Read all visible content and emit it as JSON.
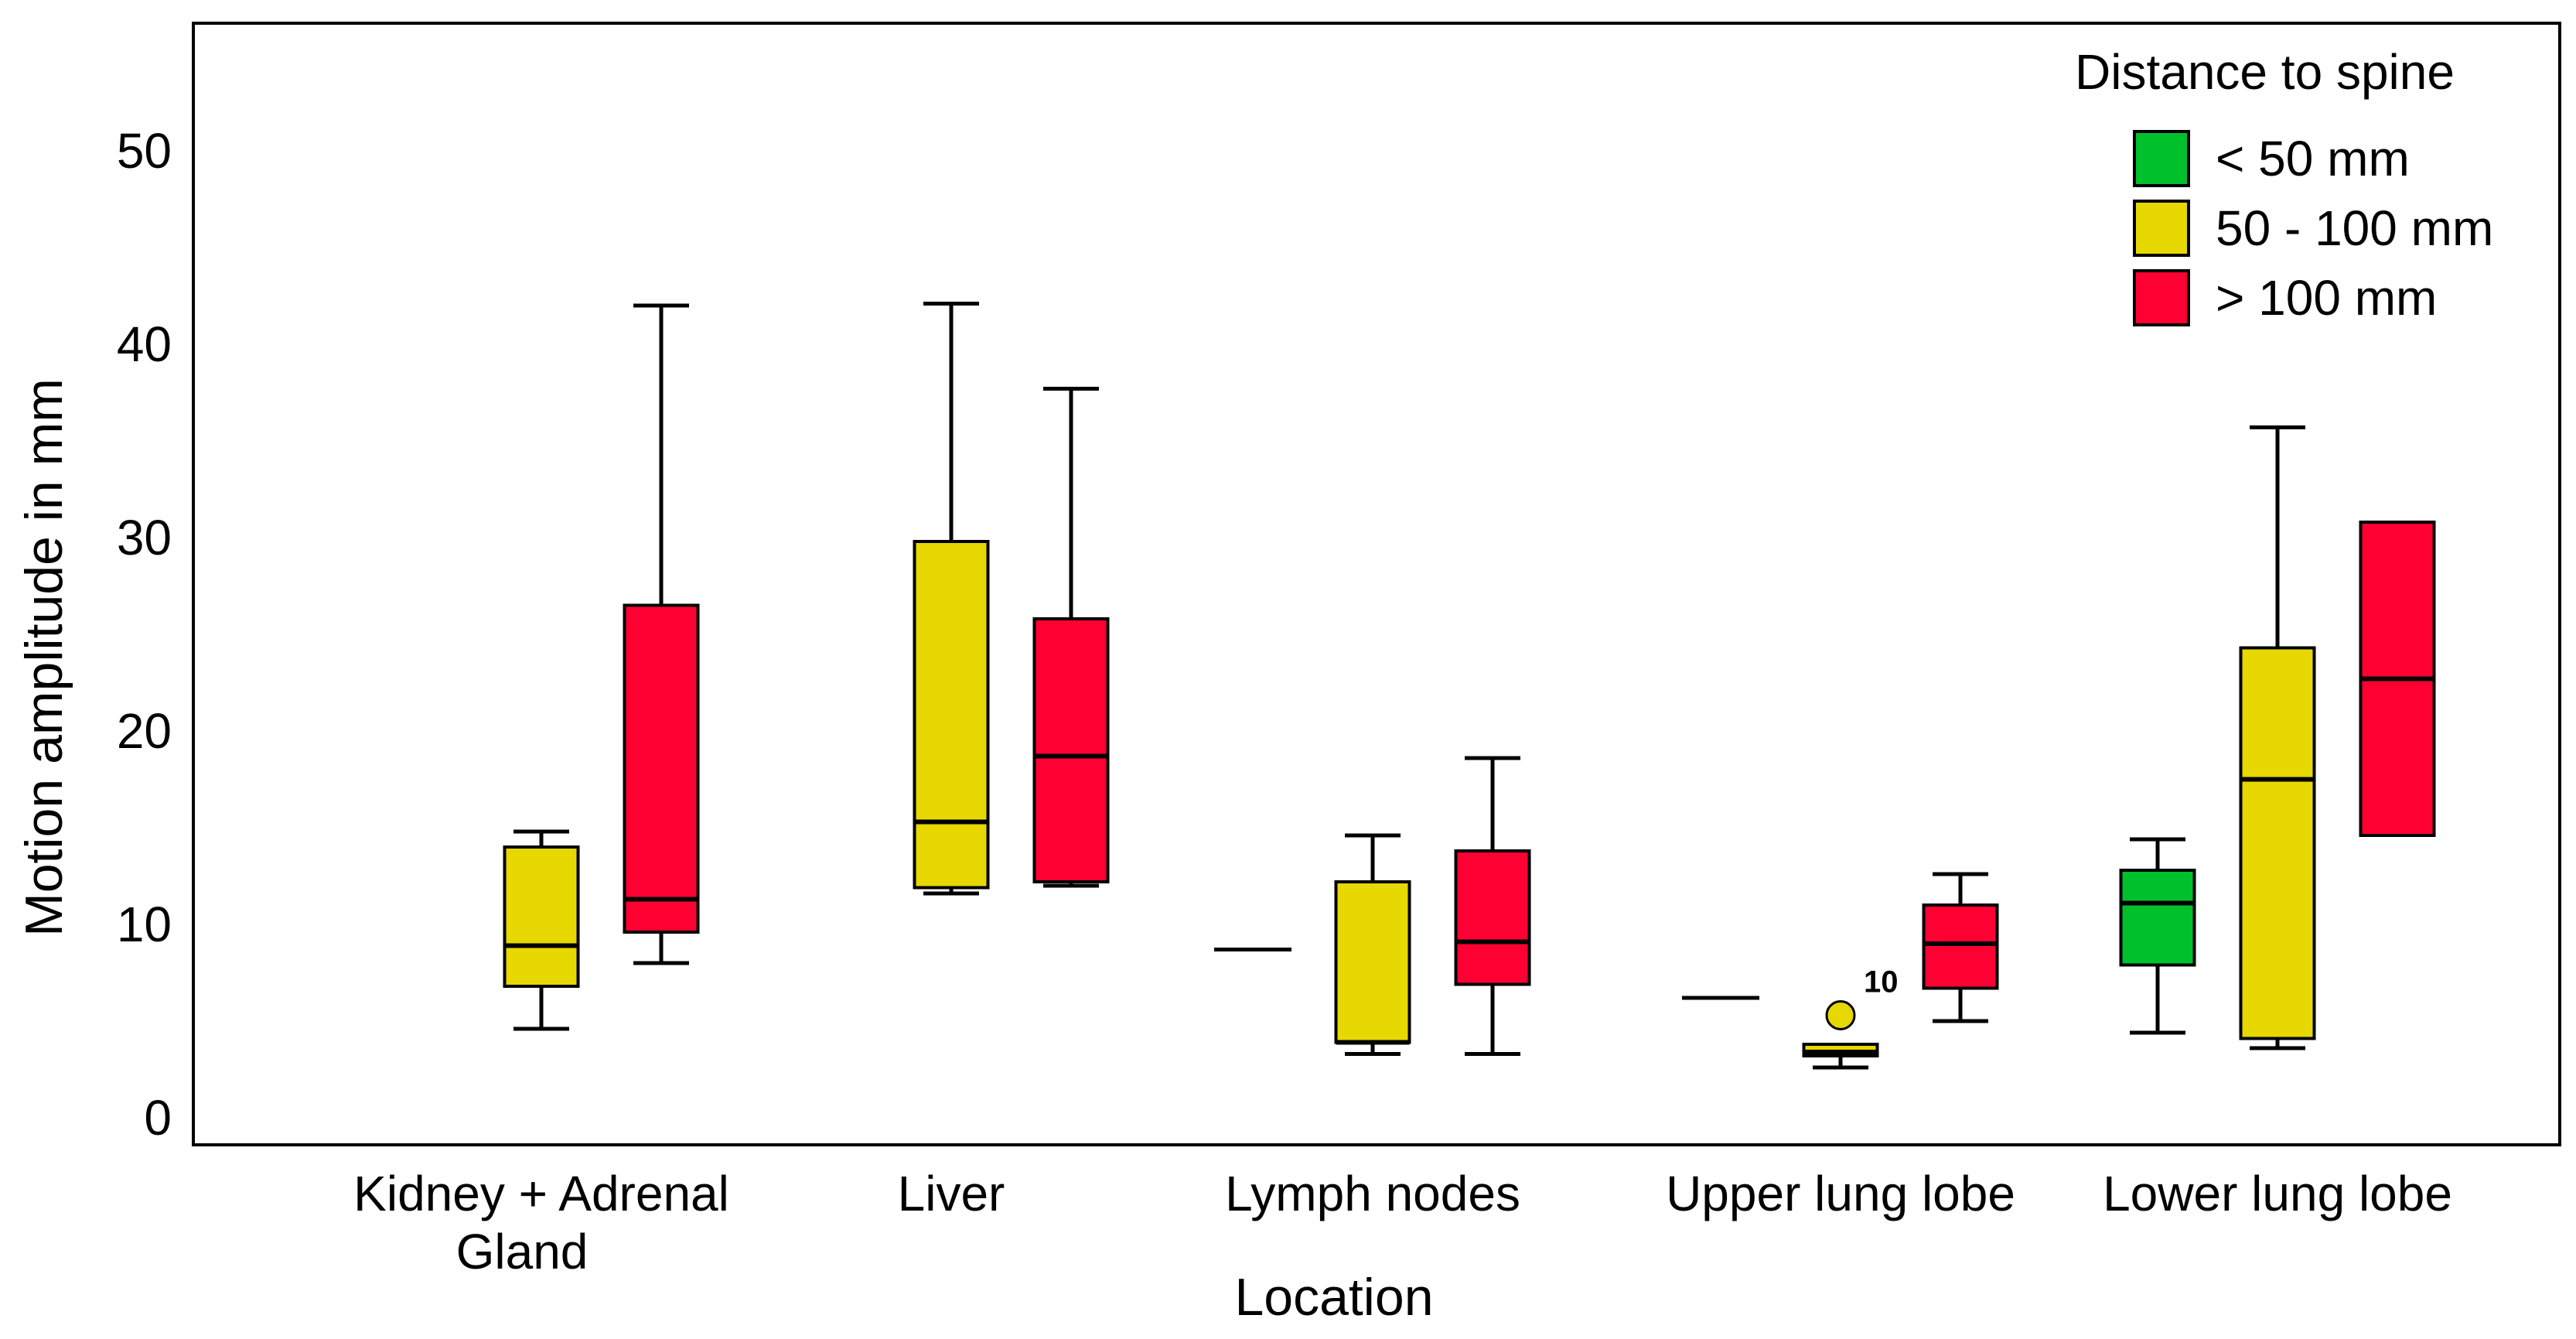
{
  "chart_data": {
    "type": "box",
    "xlabel": "Location",
    "ylabel": "Motion amplitude in mm",
    "ylim": [
      0,
      55
    ],
    "yticks": [
      0,
      10,
      20,
      30,
      40,
      50
    ],
    "categories": [
      [
        "Kidney + Adrenal",
        "Gland"
      ],
      [
        "Liver"
      ],
      [
        "Lymph nodes"
      ],
      [
        "Upper lung lobe"
      ],
      [
        "Lower lung lobe"
      ]
    ],
    "legend": {
      "title": "Distance to spine",
      "position": "top-right",
      "entries": [
        {
          "key": "lt50",
          "label": "< 50 mm",
          "color": "#00c12b"
        },
        {
          "key": "50to100",
          "label": "50 - 100 mm",
          "color": "#e6d800"
        },
        {
          "key": "gt100",
          "label": "> 100 mm",
          "color": "#ff0033"
        }
      ]
    },
    "boxes": [
      {
        "category": 0,
        "group": "50to100",
        "min": 4.6,
        "q1": 6.8,
        "median": 8.9,
        "q3": 14.0,
        "max": 14.8
      },
      {
        "category": 0,
        "group": "gt100",
        "min": 8.0,
        "q1": 9.6,
        "median": 11.3,
        "q3": 26.5,
        "max": 42.0
      },
      {
        "category": 1,
        "group": "50to100",
        "min": 11.6,
        "q1": 11.9,
        "median": 15.3,
        "q3": 29.8,
        "max": 42.1
      },
      {
        "category": 1,
        "group": "gt100",
        "min": 12.0,
        "q1": 12.2,
        "median": 18.7,
        "q3": 25.8,
        "max": 37.7
      },
      {
        "category": 2,
        "group": "lt50",
        "min": 8.7,
        "q1": 8.7,
        "median": 8.7,
        "q3": 8.7,
        "max": 8.7
      },
      {
        "category": 2,
        "group": "50to100",
        "min": 3.3,
        "q1": 3.9,
        "median": 3.9,
        "q3": 12.2,
        "max": 14.6
      },
      {
        "category": 2,
        "group": "gt100",
        "min": 3.3,
        "q1": 6.9,
        "median": 9.1,
        "q3": 13.8,
        "max": 18.6
      },
      {
        "category": 3,
        "group": "lt50",
        "min": 6.2,
        "q1": 6.2,
        "median": 6.2,
        "q3": 6.2,
        "max": 6.2
      },
      {
        "category": 3,
        "group": "50to100",
        "min": 2.6,
        "q1": 3.2,
        "median": 3.4,
        "q3": 3.8,
        "max": 3.8,
        "outliers": [
          {
            "value": 5.3,
            "label": "10"
          }
        ]
      },
      {
        "category": 3,
        "group": "gt100",
        "min": 5.0,
        "q1": 6.7,
        "median": 9.0,
        "q3": 11.0,
        "max": 12.6
      },
      {
        "category": 4,
        "group": "lt50",
        "min": 4.4,
        "q1": 7.9,
        "median": 11.1,
        "q3": 12.8,
        "max": 14.4
      },
      {
        "category": 4,
        "group": "50to100",
        "min": 3.6,
        "q1": 4.1,
        "median": 17.5,
        "q3": 24.3,
        "max": 35.7
      },
      {
        "category": 4,
        "group": "gt100",
        "min": 14.6,
        "q1": 14.6,
        "median": 22.7,
        "q3": 30.8,
        "max": 30.8
      }
    ]
  }
}
